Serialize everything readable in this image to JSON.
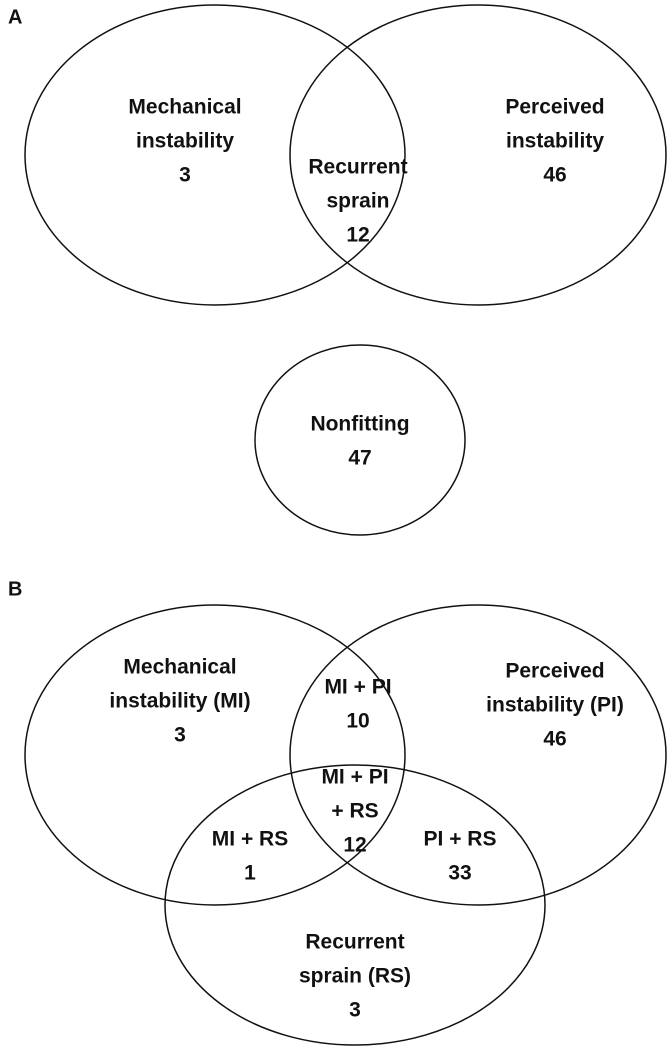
{
  "panels": [
    {
      "label": "A",
      "regions": [
        {
          "lines": [
            "Mechanical",
            "instability"
          ],
          "count": 3
        },
        {
          "lines": [
            "Recurrent",
            "sprain"
          ],
          "count": 12
        },
        {
          "lines": [
            "Perceived",
            "instability"
          ],
          "count": 46
        },
        {
          "lines": [
            "Nonfitting"
          ],
          "count": 47
        }
      ]
    },
    {
      "label": "B",
      "regions": [
        {
          "lines": [
            "Mechanical",
            "instability (MI)"
          ],
          "count": 3
        },
        {
          "lines": [
            "MI + PI"
          ],
          "count": 10
        },
        {
          "lines": [
            "Perceived",
            "instability (PI)"
          ],
          "count": 46
        },
        {
          "lines": [
            "MI + PI",
            "+ RS"
          ],
          "count": 12
        },
        {
          "lines": [
            "MI + RS"
          ],
          "count": 1
        },
        {
          "lines": [
            "PI + RS"
          ],
          "count": 33
        },
        {
          "lines": [
            "Recurrent",
            "sprain (RS)"
          ],
          "count": 3
        }
      ]
    }
  ]
}
